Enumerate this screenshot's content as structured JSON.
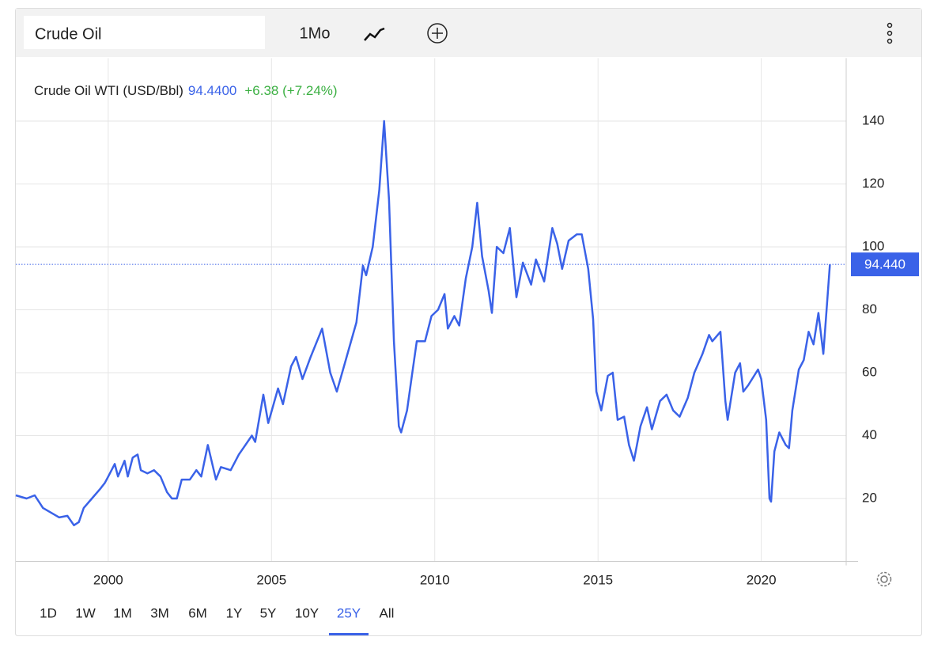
{
  "toolbar": {
    "search": "Crude Oil",
    "interval": "1Mo"
  },
  "ranges": {
    "buttons": [
      "1D",
      "1W",
      "1M",
      "3M",
      "6M",
      "1Y",
      "5Y",
      "10Y",
      "25Y",
      "All"
    ],
    "selected_index": 8
  },
  "header": {
    "price": "94.4400",
    "change": "+6.38 (+7.24%)"
  },
  "chart_data": {
    "type": "line",
    "x": [
      1997.17,
      1997.5,
      1997.75,
      1998.0,
      1998.25,
      1998.5,
      1998.75,
      1998.95,
      1999.1,
      1999.25,
      1999.5,
      1999.75,
      1999.9,
      2000.0,
      2000.2,
      2000.3,
      2000.5,
      2000.6,
      2000.75,
      2000.9,
      2001.0,
      2001.2,
      2001.4,
      2001.6,
      2001.8,
      2001.95,
      2002.1,
      2002.25,
      2002.5,
      2002.7,
      2002.85,
      2003.05,
      2003.3,
      2003.45,
      2003.75,
      2004.0,
      2004.2,
      2004.4,
      2004.5,
      2004.75,
      2004.9,
      2005.2,
      2005.35,
      2005.6,
      2005.75,
      2005.95,
      2006.2,
      2006.55,
      2006.8,
      2007.0,
      2007.3,
      2007.6,
      2007.8,
      2007.9,
      2008.1,
      2008.3,
      2008.45,
      2008.6,
      2008.75,
      2008.9,
      2008.97,
      2009.15,
      2009.3,
      2009.45,
      2009.7,
      2009.9,
      2010.1,
      2010.3,
      2010.4,
      2010.6,
      2010.75,
      2010.95,
      2011.15,
      2011.3,
      2011.45,
      2011.65,
      2011.75,
      2011.9,
      2012.1,
      2012.3,
      2012.5,
      2012.7,
      2012.95,
      2013.1,
      2013.35,
      2013.6,
      2013.75,
      2013.9,
      2014.1,
      2014.35,
      2014.5,
      2014.7,
      2014.85,
      2014.95,
      2015.1,
      2015.3,
      2015.45,
      2015.6,
      2015.8,
      2015.95,
      2016.1,
      2016.3,
      2016.5,
      2016.65,
      2016.9,
      2017.1,
      2017.3,
      2017.5,
      2017.75,
      2017.95,
      2018.2,
      2018.4,
      2018.5,
      2018.75,
      2018.9,
      2018.97,
      2019.2,
      2019.35,
      2019.45,
      2019.6,
      2019.9,
      2020.0,
      2020.15,
      2020.25,
      2020.3,
      2020.4,
      2020.55,
      2020.75,
      2020.85,
      2020.95,
      2021.15,
      2021.3,
      2021.45,
      2021.6,
      2021.75,
      2021.9,
      2022.0,
      2022.1
    ],
    "series": [
      {
        "name": "Crude Oil WTI (USD/Bbl)",
        "color": "#3a62e8",
        "values": [
          21,
          20,
          21,
          17,
          15.5,
          14,
          14.5,
          11.5,
          12.5,
          17,
          20,
          23,
          25,
          27,
          31,
          27,
          32,
          27,
          33,
          34,
          29,
          28,
          29,
          27,
          22,
          20,
          20,
          26,
          26,
          29,
          27,
          37,
          26,
          30,
          29,
          34,
          37,
          40,
          38,
          53,
          44,
          55,
          50,
          62,
          65,
          58,
          65,
          74,
          60,
          54,
          65,
          76,
          94,
          91,
          100,
          118,
          140,
          115,
          70,
          43,
          41,
          48,
          59,
          70,
          70,
          78,
          80,
          85,
          74,
          78,
          75,
          90,
          100,
          114,
          97,
          86,
          79,
          100,
          98,
          106,
          84,
          95,
          88,
          96,
          89,
          106,
          101,
          93,
          102,
          104,
          104,
          93,
          77,
          54,
          48,
          59,
          60,
          45,
          46,
          37,
          32,
          43,
          49,
          42,
          51,
          53,
          48,
          46,
          52,
          60,
          66,
          72,
          70,
          73,
          51,
          45,
          60,
          63,
          54,
          56,
          61,
          58,
          45,
          20,
          19,
          35,
          41,
          37,
          36,
          48,
          61,
          64,
          73,
          69,
          79,
          66,
          80,
          94.44
        ]
      }
    ],
    "last_price": {
      "value": 94.44,
      "label": "94.440"
    },
    "xlim": [
      1997.17,
      2022.6
    ],
    "xticks": [
      2000,
      2005,
      2010,
      2015,
      2020
    ],
    "ylim": [
      0,
      160
    ],
    "yticks": [
      20,
      40,
      60,
      80,
      100,
      120,
      140
    ],
    "grid": true
  }
}
